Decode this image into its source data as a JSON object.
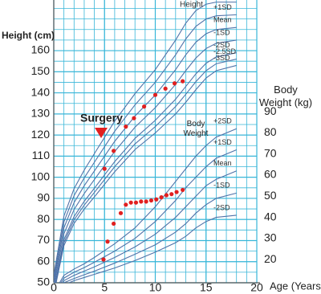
{
  "chart_data": {
    "type": "line",
    "ylabel": "Height (cm)",
    "y2label": "Body Weight (kg)",
    "xlabel": "Age (Years)",
    "annotation": "Surgery",
    "height_label": "Height",
    "weight_label": "Body Weight",
    "grid": true,
    "xlim": [
      0,
      20
    ],
    "xticks": [
      0,
      5,
      10,
      15,
      20
    ],
    "ylim": [
      50,
      184
    ],
    "yticks": [
      50,
      60,
      70,
      80,
      90,
      100,
      110,
      120,
      130,
      140,
      150,
      160
    ],
    "y2lim": [
      9,
      143
    ],
    "y2ticks": [
      20,
      30,
      40,
      50,
      60,
      70,
      80,
      90
    ],
    "x": [
      0,
      1,
      2,
      3,
      4,
      6,
      8,
      10,
      12,
      13,
      14,
      15,
      16,
      18
    ],
    "series": [
      {
        "name": "+2SD",
        "color": "#4f72a8",
        "values": [
          53.6,
          81.6,
          94.6,
          103.4,
          111.2,
          126.6,
          139.6,
          151,
          165,
          173,
          179,
          182,
          183,
          183
        ]
      },
      {
        "name": "+1SD",
        "color": "#4f72a8",
        "values": [
          51.8,
          78.8,
          91.3,
          99.7,
          107.1,
          121.8,
          134.3,
          145,
          158,
          165.5,
          171.5,
          175,
          176.5,
          177
        ]
      },
      {
        "name": "Mean",
        "color": "#4f72a8",
        "values": [
          50,
          76,
          88,
          96,
          103,
          117,
          129,
          139,
          151,
          158,
          164,
          168,
          170,
          171
        ]
      },
      {
        "name": "-1SD",
        "color": "#4f72a8",
        "values": [
          48.2,
          73.2,
          84.7,
          92.3,
          98.9,
          112.2,
          123.7,
          133,
          144,
          150.5,
          156.5,
          161,
          163.5,
          165
        ]
      },
      {
        "name": "-2SD",
        "color": "#4f72a8",
        "values": [
          46.4,
          70.4,
          81.4,
          88.6,
          94.8,
          107.4,
          118.4,
          127,
          137,
          143,
          149,
          154,
          157,
          159
        ]
      },
      {
        "name": "-2.5SD",
        "color": "#4f72a8",
        "values": [
          45.5,
          69,
          79.8,
          86.8,
          92.8,
          105,
          115.8,
          124,
          133.5,
          139.3,
          145.3,
          150.5,
          153.8,
          156
        ]
      },
      {
        "name": "-3SD",
        "color": "#4f72a8",
        "values": [
          44.6,
          67.6,
          78.1,
          84.9,
          90.7,
          102.6,
          113.1,
          121,
          130,
          135.5,
          141.5,
          147,
          150.5,
          153
        ]
      },
      {
        "name": "+2SD",
        "axis": "y2",
        "color": "#4f72a8",
        "values": [
          4.3,
          12.5,
          15.5,
          18,
          21,
          27.5,
          35,
          45,
          57,
          63,
          69,
          74,
          78,
          82
        ]
      },
      {
        "name": "+1SD",
        "axis": "y2",
        "color": "#4f72a8",
        "values": [
          3.8,
          11.2,
          14,
          16.2,
          18.7,
          24,
          30,
          38,
          48,
          54,
          59,
          64,
          68,
          72
        ]
      },
      {
        "name": "Mean",
        "axis": "y2",
        "color": "#4f72a8",
        "values": [
          3.3,
          10,
          12.5,
          14.5,
          16.5,
          21,
          26,
          32,
          40,
          45,
          50,
          55,
          58,
          62
        ]
      },
      {
        "name": "-1SD",
        "axis": "y2",
        "color": "#4f72a8",
        "values": [
          2.9,
          9,
          11,
          12.8,
          14.5,
          18.3,
          22.5,
          27,
          33,
          37,
          42,
          46,
          49,
          51.5
        ]
      },
      {
        "name": "-2SD",
        "axis": "y2",
        "color": "#4f72a8",
        "values": [
          2.5,
          8,
          10,
          11.5,
          13,
          16,
          19.5,
          23.5,
          28,
          31,
          35,
          38,
          40,
          41
        ]
      }
    ],
    "points": [
      {
        "color": "#e02020",
        "x": [
          5,
          5.9,
          7.1,
          7.9,
          8.9,
          10,
          11,
          11.9,
          12.7
        ],
        "values": [
          104,
          112.5,
          124,
          128,
          133.5,
          139,
          142,
          144.5,
          145.5
        ]
      },
      {
        "color": "#e02020",
        "axis": "y2",
        "x": [
          4.9,
          5.3,
          5.9,
          6.6,
          7.1,
          7.6,
          8.1,
          8.6,
          9.1,
          9.6,
          10.1,
          10.6,
          11.1,
          11.6,
          12.1,
          12.7
        ],
        "values": [
          20,
          28.5,
          37,
          42,
          46,
          47,
          47,
          47.5,
          47.5,
          48,
          48.5,
          49.5,
          50.5,
          51,
          52,
          53
        ]
      }
    ]
  }
}
